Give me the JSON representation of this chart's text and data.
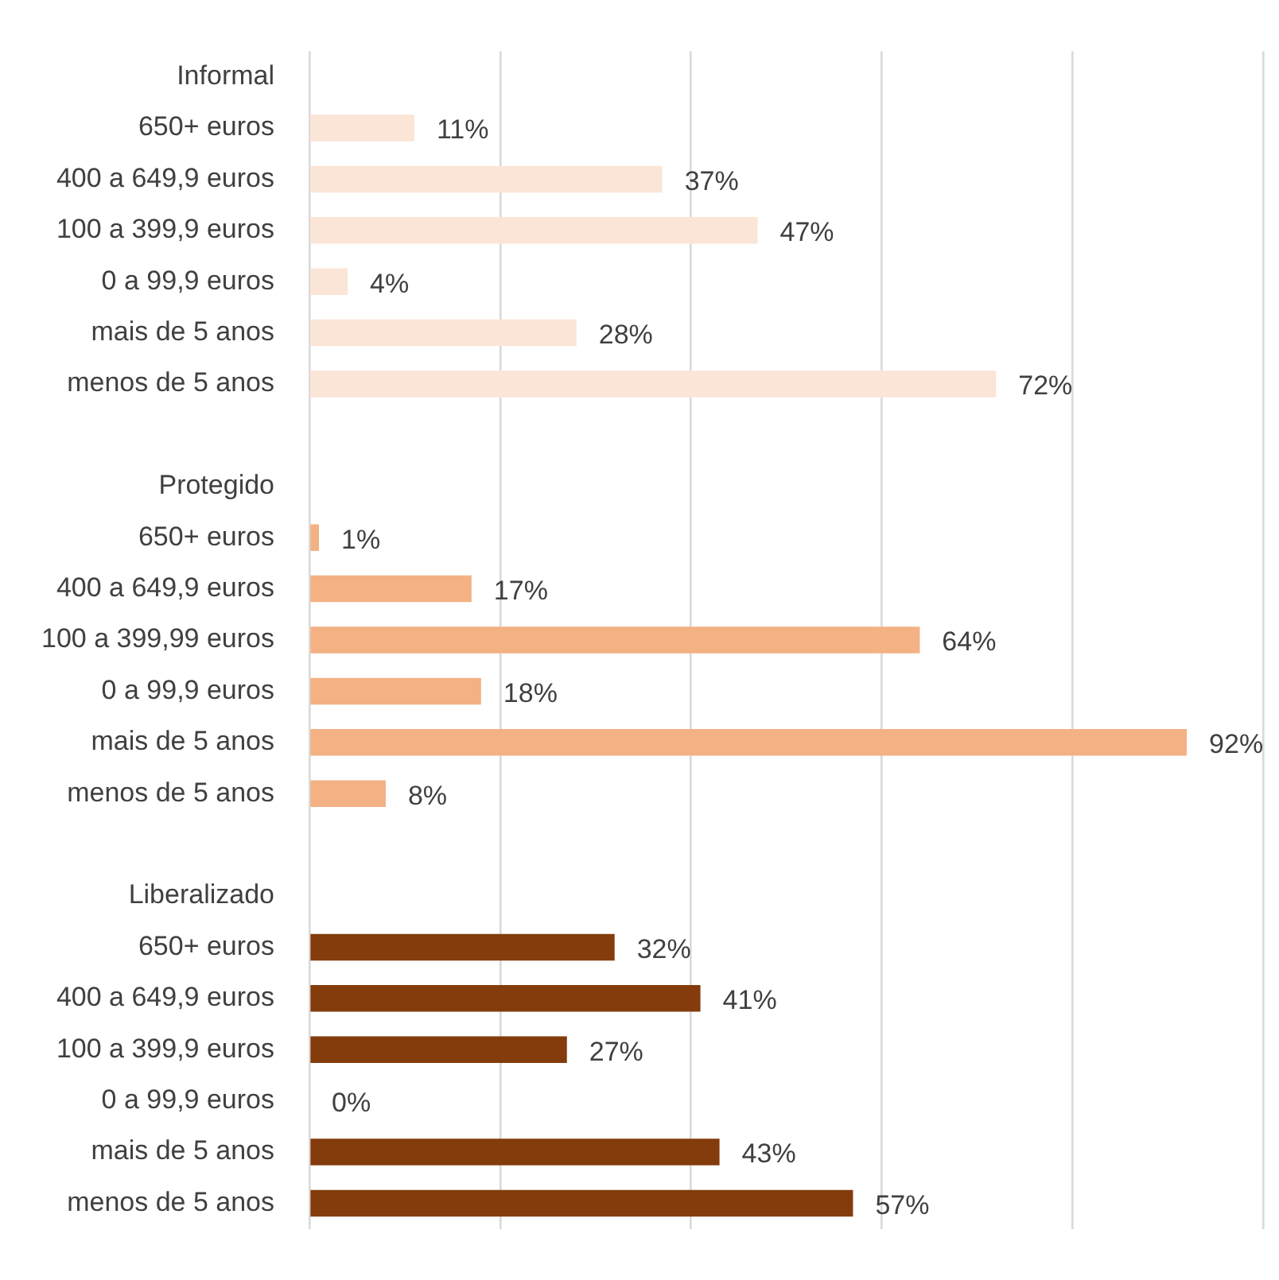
{
  "chart_data": {
    "type": "bar",
    "orientation": "horizontal",
    "categories": [
      "Informal",
      "650+ euros",
      "400 a 649,9 euros",
      "100 a 399,9 euros",
      "0 a 99,9 euros",
      "mais de 5 anos",
      "menos de 5 anos",
      null,
      "Protegido",
      "650+ euros",
      "400 a 649,9 euros",
      "100 a 399,99 euros",
      "0 a 99,9 euros",
      "mais de 5 anos",
      "menos de 5 anos",
      null,
      "Liberalizado",
      "650+ euros",
      "400 a 649,9 euros",
      "100 a 399,9 euros",
      "0 a 99,9 euros",
      "mais de 5 anos",
      "menos de 5 anos"
    ],
    "values": [
      null,
      11,
      37,
      47,
      4,
      28,
      72,
      null,
      null,
      1,
      17,
      64,
      18,
      92,
      8,
      null,
      null,
      32,
      41,
      27,
      0,
      43,
      57
    ],
    "value_labels": [
      null,
      "11%",
      "37%",
      "47%",
      "4%",
      "28%",
      "72%",
      null,
      null,
      "1%",
      "17%",
      "64%",
      "18%",
      "92%",
      "8%",
      null,
      null,
      "32%",
      "41%",
      "27%",
      "0%",
      "43%",
      "57%"
    ],
    "colors": [
      null,
      "#fbe5d6",
      "#fbe5d6",
      "#fbe5d6",
      "#fbe5d6",
      "#fbe5d6",
      "#fbe5d6",
      null,
      null,
      "#f4b183",
      "#f4b183",
      "#f4b183",
      "#f4b183",
      "#f4b183",
      "#f4b183",
      null,
      null,
      "#843c0c",
      "#843c0c",
      "#843c0c",
      "#843c0c",
      "#843c0c",
      "#843c0c"
    ],
    "xlim": [
      0,
      100
    ],
    "xticks": [
      {
        "value": 0,
        "label": null
      },
      {
        "value": 20,
        "label": null
      },
      {
        "value": 40,
        "label": null
      },
      {
        "value": 60,
        "label": null
      },
      {
        "value": 80,
        "label": null
      },
      {
        "value": 100,
        "label": null
      }
    ],
    "tick_labels": "y",
    "grid": "x",
    "legend": false
  }
}
